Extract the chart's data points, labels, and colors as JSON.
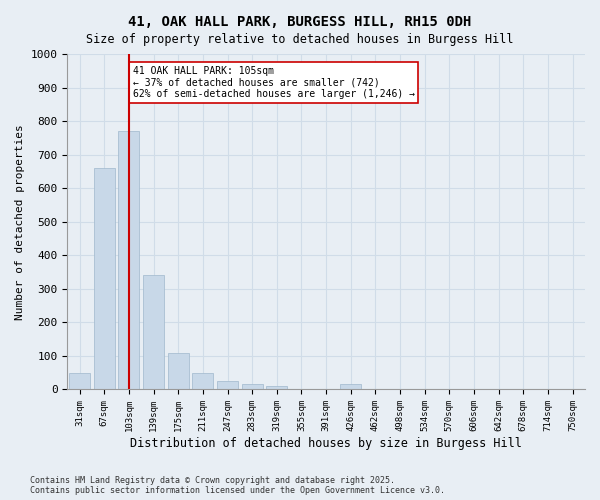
{
  "title_line1": "41, OAK HALL PARK, BURGESS HILL, RH15 0DH",
  "title_line2": "Size of property relative to detached houses in Burgess Hill",
  "xlabel": "Distribution of detached houses by size in Burgess Hill",
  "ylabel": "Number of detached properties",
  "bin_labels": [
    "31sqm",
    "67sqm",
    "103sqm",
    "139sqm",
    "175sqm",
    "211sqm",
    "247sqm",
    "283sqm",
    "319sqm",
    "355sqm",
    "391sqm",
    "426sqm",
    "462sqm",
    "498sqm",
    "534sqm",
    "570sqm",
    "606sqm",
    "642sqm",
    "678sqm",
    "714sqm",
    "750sqm"
  ],
  "bar_values": [
    50,
    660,
    770,
    340,
    110,
    50,
    25,
    15,
    10,
    0,
    0,
    15,
    0,
    0,
    0,
    0,
    0,
    0,
    0,
    0,
    0
  ],
  "bar_color": "#c8d8e8",
  "bar_edge_color": "#a0b8cc",
  "grid_color": "#d0dce8",
  "vline_x": 2,
  "vline_color": "#cc0000",
  "annotation_text": "41 OAK HALL PARK: 105sqm\n← 37% of detached houses are smaller (742)\n62% of semi-detached houses are larger (1,246) →",
  "annotation_box_color": "#ffffff",
  "annotation_box_edgecolor": "#cc0000",
  "ylim": [
    0,
    1000
  ],
  "yticks": [
    0,
    100,
    200,
    300,
    400,
    500,
    600,
    700,
    800,
    900,
    1000
  ],
  "footer_text": "Contains HM Land Registry data © Crown copyright and database right 2025.\nContains public sector information licensed under the Open Government Licence v3.0.",
  "bg_color": "#e8eef4",
  "plot_bg_color": "#e8eef4"
}
